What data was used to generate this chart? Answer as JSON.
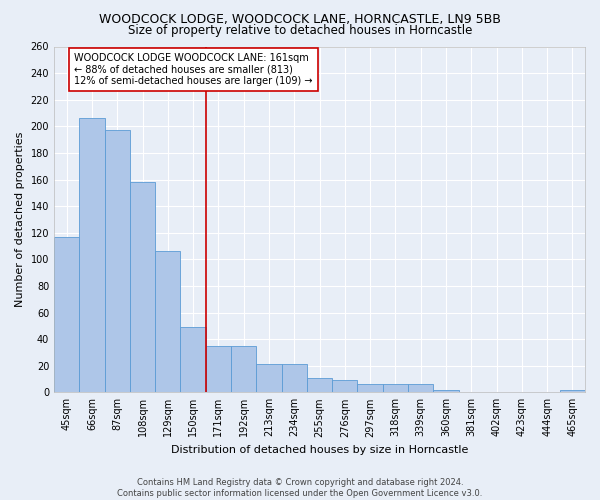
{
  "title": "WOODCOCK LODGE, WOODCOCK LANE, HORNCASTLE, LN9 5BB",
  "subtitle": "Size of property relative to detached houses in Horncastle",
  "xlabel": "Distribution of detached houses by size in Horncastle",
  "ylabel": "Number of detached properties",
  "categories": [
    "45sqm",
    "66sqm",
    "87sqm",
    "108sqm",
    "129sqm",
    "150sqm",
    "171sqm",
    "192sqm",
    "213sqm",
    "234sqm",
    "255sqm",
    "276sqm",
    "297sqm",
    "318sqm",
    "339sqm",
    "360sqm",
    "381sqm",
    "402sqm",
    "423sqm",
    "444sqm",
    "465sqm"
  ],
  "values": [
    117,
    206,
    197,
    158,
    106,
    49,
    35,
    35,
    21,
    21,
    11,
    9,
    6,
    6,
    6,
    2,
    0,
    0,
    0,
    0,
    2
  ],
  "bar_color": "#aec6e8",
  "bar_edge_color": "#5b9bd5",
  "vline_x": 5.5,
  "vline_color": "#cc0000",
  "annotation_text": "WOODCOCK LODGE WOODCOCK LANE: 161sqm\n← 88% of detached houses are smaller (813)\n12% of semi-detached houses are larger (109) →",
  "annotation_box_color": "#ffffff",
  "annotation_box_edge": "#cc0000",
  "ylim": [
    0,
    260
  ],
  "yticks": [
    0,
    20,
    40,
    60,
    80,
    100,
    120,
    140,
    160,
    180,
    200,
    220,
    240,
    260
  ],
  "footer": "Contains HM Land Registry data © Crown copyright and database right 2024.\nContains public sector information licensed under the Open Government Licence v3.0.",
  "background_color": "#e8eef7",
  "grid_color": "#ffffff",
  "title_fontsize": 9,
  "subtitle_fontsize": 8.5,
  "axis_label_fontsize": 8,
  "tick_fontsize": 7,
  "annotation_fontsize": 7,
  "footer_fontsize": 6
}
